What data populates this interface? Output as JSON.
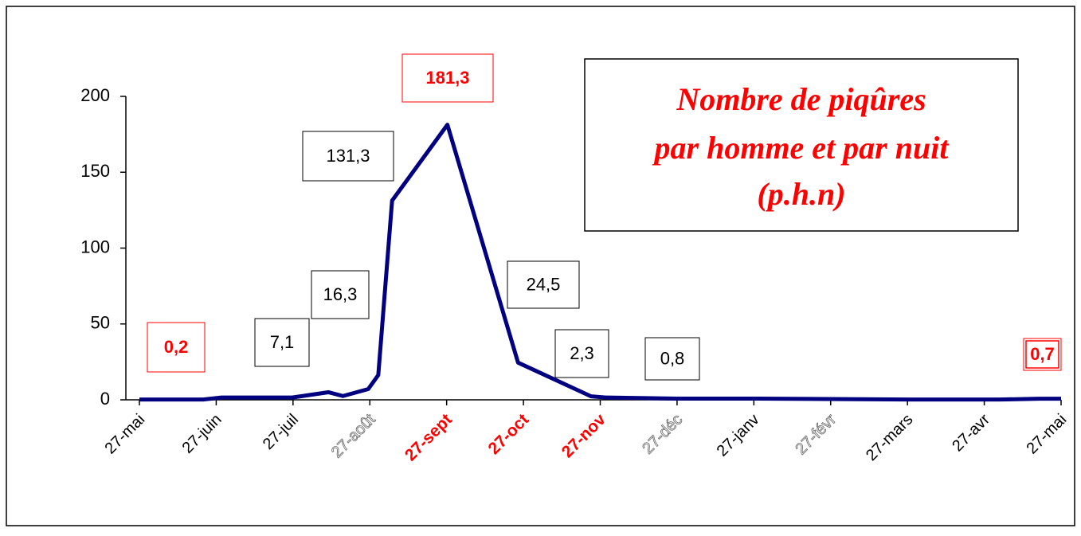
{
  "chart_data": {
    "type": "line",
    "title": [
      "Nombre de piqûres",
      "par homme et par nuit",
      "(p.h.n)"
    ],
    "x": [
      0,
      0.83,
      1.07,
      1.99,
      2.46,
      2.65,
      2.98,
      3.11,
      3.29,
      4.01,
      4.93,
      5.88,
      6.07,
      7.0,
      8.04,
      10.01,
      11.2,
      11.72,
      12
    ],
    "series": [
      {
        "color": "#000080",
        "values": [
          0.2,
          0.2,
          1.5,
          1.5,
          5,
          2.5,
          7.1,
          16.3,
          131.3,
          181.3,
          24.5,
          2.3,
          1.5,
          0.8,
          0.8,
          0.2,
          0.2,
          0.7,
          0.7
        ],
        "value_labels": [
          "0,2",
          null,
          null,
          null,
          null,
          null,
          "7,1",
          "16,3",
          "131,3",
          "181,3",
          "24,5",
          "2,3",
          null,
          "0,8",
          null,
          null,
          null,
          "0,7",
          null
        ],
        "value_label_colors": [
          "#ff0000",
          null,
          null,
          null,
          null,
          null,
          "#000000",
          "#000000",
          "#000000",
          "#ff0000",
          "#000000",
          "#000000",
          null,
          "#000000",
          null,
          null,
          null,
          "#ff0000",
          null
        ]
      }
    ],
    "xlim": [
      0,
      12
    ],
    "xticks": [
      {
        "value": 0,
        "label": "27-mai"
      },
      {
        "value": 1,
        "label": "27-juin"
      },
      {
        "value": 2,
        "label": "27-juil"
      },
      {
        "value": 3,
        "label": "27-août"
      },
      {
        "value": 4,
        "label": "27-sept"
      },
      {
        "value": 5,
        "label": "27-oct"
      },
      {
        "value": 6,
        "label": "27-nov"
      },
      {
        "value": 7,
        "label": "27-déc"
      },
      {
        "value": 8,
        "label": "27-janv"
      },
      {
        "value": 9,
        "label": "27-févr"
      },
      {
        "value": 10,
        "label": "27-mars"
      },
      {
        "value": 11,
        "label": "27-avr"
      },
      {
        "value": 12,
        "label": "27-mai"
      }
    ],
    "xtick_colors": [
      "#000000",
      "#000000",
      "#000000",
      "ghost",
      "#ff0000",
      "#ff0000",
      "#ff0000",
      "ghost",
      "#000000",
      "ghost",
      "#000000",
      "#000000",
      "#000000"
    ],
    "ylim": [
      0,
      200
    ],
    "yticks": [
      0,
      50,
      100,
      150,
      200
    ]
  }
}
